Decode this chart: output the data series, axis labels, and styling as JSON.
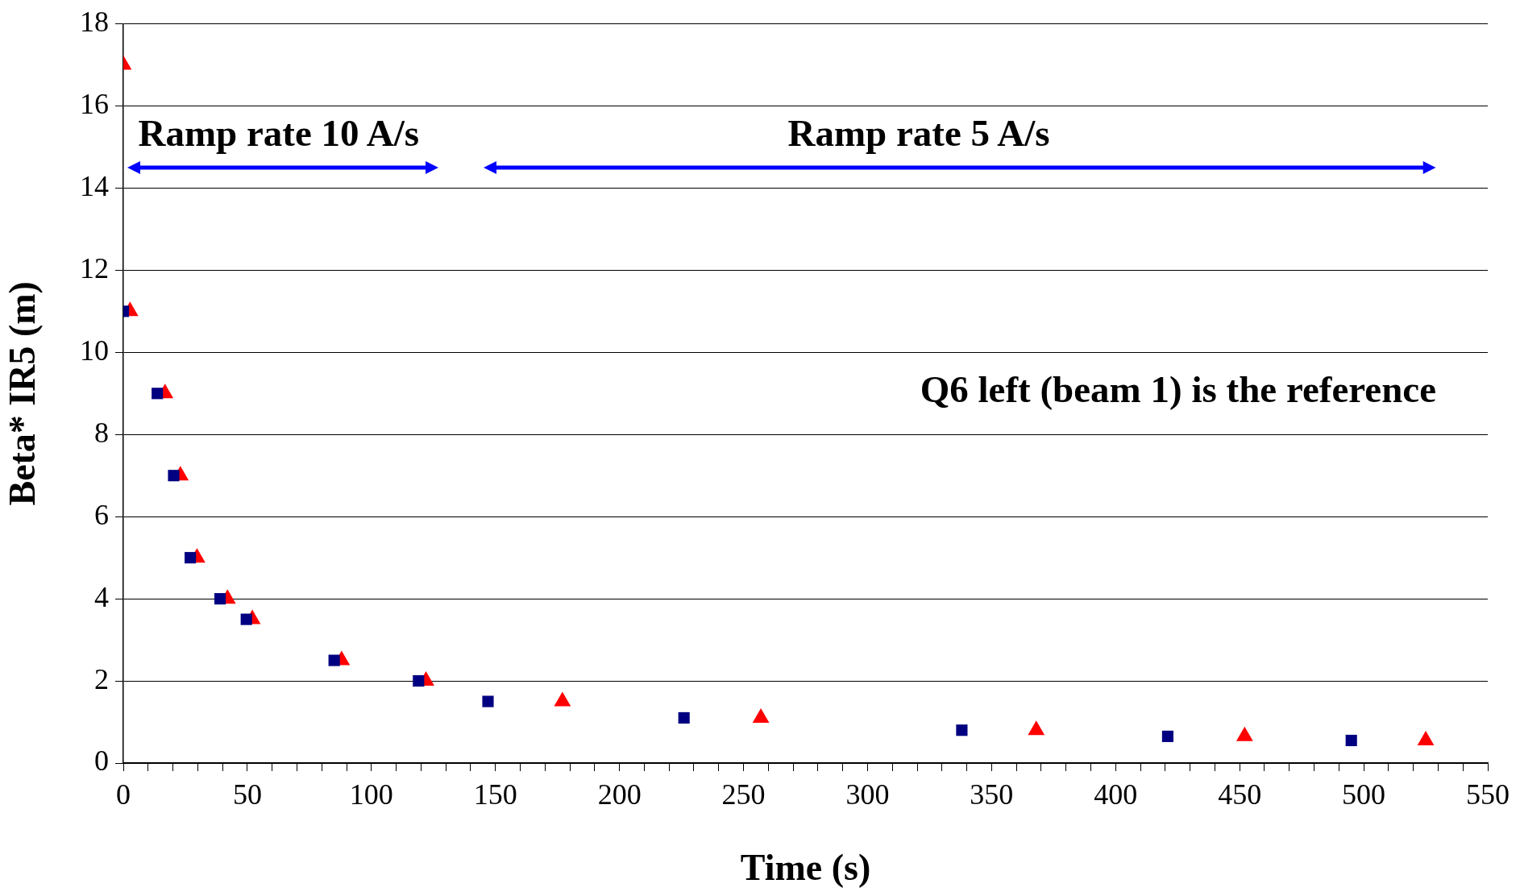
{
  "chart_data": {
    "type": "scatter",
    "xlabel": "Time (s)",
    "ylabel": "Beta* IR5 (m)",
    "xlim": [
      0,
      550
    ],
    "ylim": [
      0,
      18
    ],
    "xticks": [
      0,
      {
        "value": 10,
        "label": null
      },
      {
        "value": 20,
        "label": null
      },
      {
        "value": 30,
        "label": null
      },
      {
        "value": 40,
        "label": null
      },
      50,
      {
        "value": 60,
        "label": null
      },
      {
        "value": 70,
        "label": null
      },
      {
        "value": 80,
        "label": null
      },
      {
        "value": 90,
        "label": null
      },
      100,
      {
        "value": 110,
        "label": null
      },
      {
        "value": 120,
        "label": null
      },
      {
        "value": 130,
        "label": null
      },
      {
        "value": 140,
        "label": null
      },
      150,
      {
        "value": 160,
        "label": null
      },
      {
        "value": 170,
        "label": null
      },
      {
        "value": 180,
        "label": null
      },
      {
        "value": 190,
        "label": null
      },
      200,
      {
        "value": 210,
        "label": null
      },
      {
        "value": 220,
        "label": null
      },
      {
        "value": 230,
        "label": null
      },
      {
        "value": 240,
        "label": null
      },
      250,
      {
        "value": 260,
        "label": null
      },
      {
        "value": 270,
        "label": null
      },
      {
        "value": 280,
        "label": null
      },
      {
        "value": 290,
        "label": null
      },
      300,
      {
        "value": 310,
        "label": null
      },
      {
        "value": 320,
        "label": null
      },
      {
        "value": 330,
        "label": null
      },
      {
        "value": 340,
        "label": null
      },
      350,
      {
        "value": 360,
        "label": null
      },
      {
        "value": 370,
        "label": null
      },
      {
        "value": 380,
        "label": null
      },
      {
        "value": 390,
        "label": null
      },
      400,
      {
        "value": 410,
        "label": null
      },
      {
        "value": 420,
        "label": null
      },
      {
        "value": 430,
        "label": null
      },
      {
        "value": 440,
        "label": null
      },
      450,
      {
        "value": 460,
        "label": null
      },
      {
        "value": 470,
        "label": null
      },
      {
        "value": 480,
        "label": null
      },
      {
        "value": 490,
        "label": null
      },
      500,
      {
        "value": 510,
        "label": null
      },
      {
        "value": 520,
        "label": null
      },
      {
        "value": 530,
        "label": null
      },
      {
        "value": 540,
        "label": null
      },
      550
    ],
    "yticks": [
      0,
      2,
      4,
      6,
      8,
      10,
      12,
      14,
      16,
      18
    ],
    "grid": "y",
    "legend": false,
    "series": [
      {
        "color": "#000080",
        "marker": "square",
        "x": [
          0,
          13.7,
          20.3,
          27,
          39,
          49.6,
          85,
          119,
          147,
          226,
          338,
          421,
          495
        ],
        "values": [
          11,
          9,
          7,
          5,
          4,
          3.5,
          2.5,
          2,
          1.5,
          1.1,
          0.8,
          0.65,
          0.55
        ]
      },
      {
        "color": "#ff0000",
        "marker": "triangle",
        "x": [
          0,
          2.7,
          16.8,
          23,
          29.7,
          42,
          52,
          88,
          122,
          177,
          257,
          368,
          452,
          525
        ],
        "values": [
          17,
          11,
          9,
          7,
          5,
          4,
          3.5,
          2.5,
          2,
          1.5,
          1.1,
          0.8,
          0.65,
          0.55
        ]
      }
    ],
    "annotations": [
      "Ramp rate 10 A/s",
      "Ramp rate 5 A/s",
      "Q6 left (beam 1) is the reference"
    ]
  }
}
